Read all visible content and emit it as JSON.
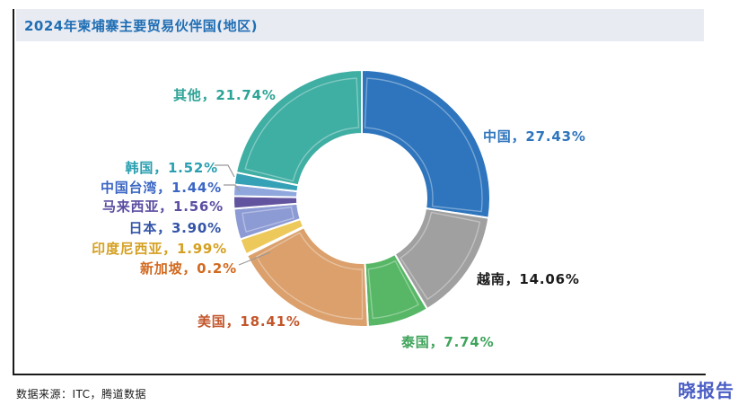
{
  "header": {
    "title": "2024年柬埔寨主要贸易伙伴国(地区)"
  },
  "footer": {
    "source": "数据来源：ITC，腾道数据",
    "brand": "晓报告"
  },
  "chart_data": {
    "type": "pie",
    "subtype": "donut",
    "title": "2024年柬埔寨主要贸易伙伴国(地区)",
    "unit": "%",
    "start_angle": "top",
    "direction": "clockwise",
    "inner_radius_ratio": 0.5,
    "legend_position": "none",
    "segments": [
      {
        "id": "china",
        "name": "中国",
        "value": 27.43,
        "label": "中国，27.43%",
        "color": "#2E75BD",
        "label_color": "#2E75BD"
      },
      {
        "id": "vietnam",
        "name": "越南",
        "value": 14.06,
        "label": "越南，14.06%",
        "color": "#A0A0A0",
        "label_color": "#1A1A1A"
      },
      {
        "id": "thailand",
        "name": "泰国",
        "value": 7.74,
        "label": "泰国，7.74%",
        "color": "#57B766",
        "label_color": "#3FA45B"
      },
      {
        "id": "usa",
        "name": "美国",
        "value": 18.41,
        "label": "美国，18.41%",
        "color": "#DBA06C",
        "label_color": "#C3562B"
      },
      {
        "id": "singapore",
        "name": "新加坡",
        "value": 0.2,
        "label": "新加坡，0.2%",
        "color": "#E0E0E0",
        "label_color": "#D2691E"
      },
      {
        "id": "indonesia",
        "name": "印度尼西亚",
        "value": 1.99,
        "label": "印度尼西亚，1.99%",
        "color": "#EDC95B",
        "label_color": "#D5A021"
      },
      {
        "id": "japan",
        "name": "日本",
        "value": 3.9,
        "label": "日本，3.90%",
        "color": "#8D9BD5",
        "label_color": "#3354A8"
      },
      {
        "id": "malaysia",
        "name": "马来西亚",
        "value": 1.56,
        "label": "马来西亚，1.56%",
        "color": "#63549F",
        "label_color": "#5B4EA2"
      },
      {
        "id": "taiwan-china",
        "name": "中国台湾",
        "value": 1.44,
        "label": "中国台湾，1.44%",
        "color": "#8FA7DC",
        "label_color": "#3B66C4"
      },
      {
        "id": "south-korea",
        "name": "韩国",
        "value": 1.52,
        "label": "韩国，1.52%",
        "color": "#35A1B6",
        "label_color": "#2A9FB0"
      },
      {
        "id": "others",
        "name": "其他",
        "value": 21.74,
        "label": "其他，21.74%",
        "color": "#3FAEA3",
        "label_color": "#2DA396"
      }
    ]
  }
}
